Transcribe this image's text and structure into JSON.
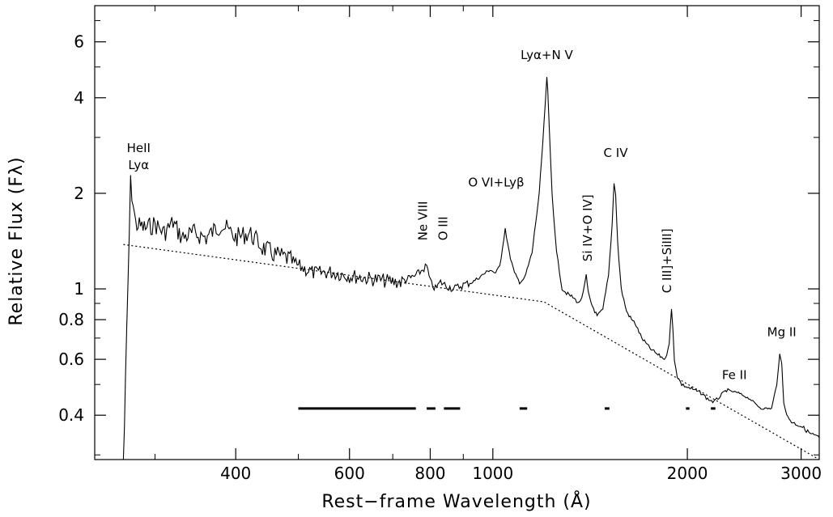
{
  "chart_data": {
    "type": "line",
    "xlabel": "Rest−frame Wavelength (Å)",
    "ylabel": "Relative Flux (Fλ)",
    "x_scale": "log",
    "y_scale": "log",
    "xlim": [
      242,
      3200
    ],
    "ylim": [
      0.29,
      7.8
    ],
    "x_ticks": [
      400,
      600,
      800,
      1000,
      2000,
      3000
    ],
    "x_tick_labels": [
      "400",
      "600",
      "800",
      "1000",
      "2000",
      "3000"
    ],
    "y_ticks": [
      0.4,
      0.6,
      0.8,
      1,
      2,
      4,
      6
    ],
    "y_tick_labels": [
      "0.4",
      "0.6",
      "0.8",
      "1",
      "2",
      "4",
      "6"
    ],
    "grid": false,
    "series": [
      {
        "role": "spectrum",
        "style": "solid",
        "x": [
          268,
          270,
          275,
          280,
          290,
          300,
          310,
          320,
          330,
          345,
          360,
          380,
          400,
          420,
          440,
          460,
          480,
          500,
          530,
          560,
          600,
          640,
          680,
          720,
          760,
          790,
          800,
          815,
          830,
          850,
          870,
          900,
          930,
          960,
          990,
          1010,
          1025,
          1035,
          1045,
          1060,
          1080,
          1100,
          1120,
          1150,
          1180,
          1200,
          1212,
          1216,
          1222,
          1235,
          1255,
          1280,
          1300,
          1330,
          1360,
          1380,
          1395,
          1405,
          1420,
          1450,
          1480,
          1510,
          1530,
          1540,
          1549,
          1560,
          1580,
          1610,
          1640,
          1660,
          1700,
          1750,
          1800,
          1850,
          1875,
          1890,
          1900,
          1910,
          1930,
          1960,
          2000,
          2050,
          2100,
          2150,
          2200,
          2250,
          2300,
          2400,
          2500,
          2600,
          2700,
          2750,
          2780,
          2800,
          2820,
          2850,
          2900,
          3000,
          3100,
          3200
        ],
        "y": [
          0.27,
          0.5,
          2.15,
          1.6,
          1.55,
          1.6,
          1.5,
          1.62,
          1.45,
          1.5,
          1.45,
          1.6,
          1.45,
          1.5,
          1.35,
          1.28,
          1.25,
          1.18,
          1.12,
          1.13,
          1.1,
          1.08,
          1.06,
          1.05,
          1.1,
          1.18,
          1.05,
          1.0,
          1.05,
          1.02,
          1.0,
          1.03,
          1.05,
          1.1,
          1.15,
          1.12,
          1.18,
          1.35,
          1.55,
          1.3,
          1.12,
          1.05,
          1.08,
          1.3,
          2.0,
          3.3,
          4.6,
          4.2,
          3.3,
          2.0,
          1.3,
          1.0,
          0.97,
          0.94,
          0.9,
          0.97,
          1.1,
          0.97,
          0.9,
          0.82,
          0.86,
          1.1,
          1.6,
          2.15,
          2.0,
          1.4,
          1.0,
          0.85,
          0.8,
          0.78,
          0.7,
          0.65,
          0.62,
          0.6,
          0.68,
          0.86,
          0.74,
          0.6,
          0.53,
          0.5,
          0.49,
          0.48,
          0.47,
          0.45,
          0.44,
          0.46,
          0.48,
          0.47,
          0.45,
          0.42,
          0.42,
          0.5,
          0.62,
          0.58,
          0.44,
          0.4,
          0.38,
          0.37,
          0.35,
          0.34
        ]
      },
      {
        "role": "continuum fit",
        "style": "dotted",
        "x": [
          268,
          1200,
          3200
        ],
        "y": [
          1.38,
          0.91,
          0.27
        ]
      }
    ],
    "segments": [
      {
        "x": [
          500,
          760
        ]
      },
      {
        "x": [
          790,
          815
        ]
      },
      {
        "x": [
          840,
          890
        ]
      },
      {
        "x": [
          1100,
          1130
        ]
      },
      {
        "x": [
          1490,
          1515
        ]
      },
      {
        "x": [
          1990,
          2015
        ]
      },
      {
        "x": [
          2175,
          2210
        ]
      }
    ],
    "segments_y": 0.42,
    "annotations": [
      {
        "lines": [
          "HeII",
          "Lyα"
        ],
        "x": 283,
        "y": 2.7,
        "rotate": false
      },
      {
        "lines": [
          "Ne VIII"
        ],
        "x": 780,
        "y": 1.42,
        "rotate": true
      },
      {
        "lines": [
          "O III"
        ],
        "x": 838,
        "y": 1.42,
        "rotate": true
      },
      {
        "lines": [
          "O VI+Lyβ"
        ],
        "x": 1012,
        "y": 2.1,
        "rotate": false
      },
      {
        "lines": [
          "Lyα+N V"
        ],
        "x": 1212,
        "y": 5.3,
        "rotate": false
      },
      {
        "lines": [
          "Si IV+O IV]"
        ],
        "x": 1402,
        "y": 1.22,
        "rotate": true
      },
      {
        "lines": [
          "C IV"
        ],
        "x": 1549,
        "y": 2.6,
        "rotate": false
      },
      {
        "lines": [
          "C III]+SiIII]"
        ],
        "x": 1860,
        "y": 0.97,
        "rotate": true
      },
      {
        "lines": [
          "Fe II"
        ],
        "x": 2365,
        "y": 0.52,
        "rotate": false
      },
      {
        "lines": [
          "Mg II"
        ],
        "x": 2800,
        "y": 0.71,
        "rotate": false
      }
    ]
  }
}
